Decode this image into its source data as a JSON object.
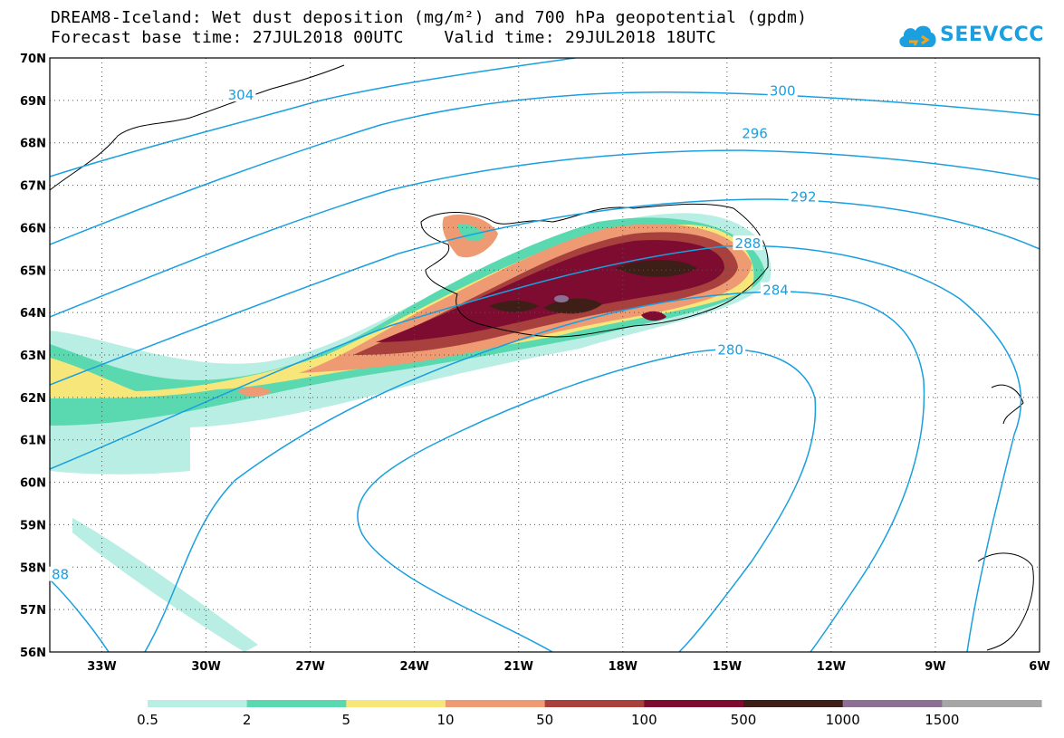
{
  "header": {
    "title_line1": "DREAM8-Iceland: Wet dust deposition (mg/m²) and 700 hPa geopotential (gpdm)",
    "title_line2": "Forecast base time: 27JUL2018 00UTC    Valid time: 29JUL2018 18UTC"
  },
  "logo": {
    "text": "SEEVCCC",
    "color": "#1a9fe0",
    "icon": "cloud-icon"
  },
  "map": {
    "lat_labels": [
      "70N",
      "69N",
      "68N",
      "67N",
      "66N",
      "65N",
      "64N",
      "63N",
      "62N",
      "61N",
      "60N",
      "59N",
      "58N",
      "57N",
      "56N"
    ],
    "lon_labels": [
      "33W",
      "30W",
      "27W",
      "24W",
      "21W",
      "18W",
      "15W",
      "12W",
      "9W",
      "6W"
    ],
    "lat_range": [
      56,
      70
    ],
    "lon_range": [
      -34.5,
      -6
    ],
    "grid": "dotted"
  },
  "contours": {
    "color": "#1a9fe0",
    "labels": [
      {
        "text": "304",
        "lon": -29.0,
        "lat": 69.1
      },
      {
        "text": "300",
        "lon": -13.4,
        "lat": 69.2
      },
      {
        "text": "296",
        "lon": -14.2,
        "lat": 68.2
      },
      {
        "text": "292",
        "lon": -12.8,
        "lat": 66.7
      },
      {
        "text": "288",
        "lon": -14.4,
        "lat": 65.6
      },
      {
        "text": "284",
        "lon": -13.6,
        "lat": 64.5
      },
      {
        "text": "280",
        "lon": -14.9,
        "lat": 63.1
      },
      {
        "text": "88",
        "lon": -34.2,
        "lat": 57.8
      }
    ]
  },
  "legend": {
    "colors": [
      "#b8eee3",
      "#5ad8b0",
      "#f7e77a",
      "#ee9a72",
      "#a8413d",
      "#7e0b30",
      "#3d1f17",
      "#8d6e94",
      "#a6a6a6"
    ],
    "labels": [
      "0.5",
      "2",
      "5",
      "10",
      "50",
      "100",
      "500",
      "1000",
      "1500"
    ]
  }
}
